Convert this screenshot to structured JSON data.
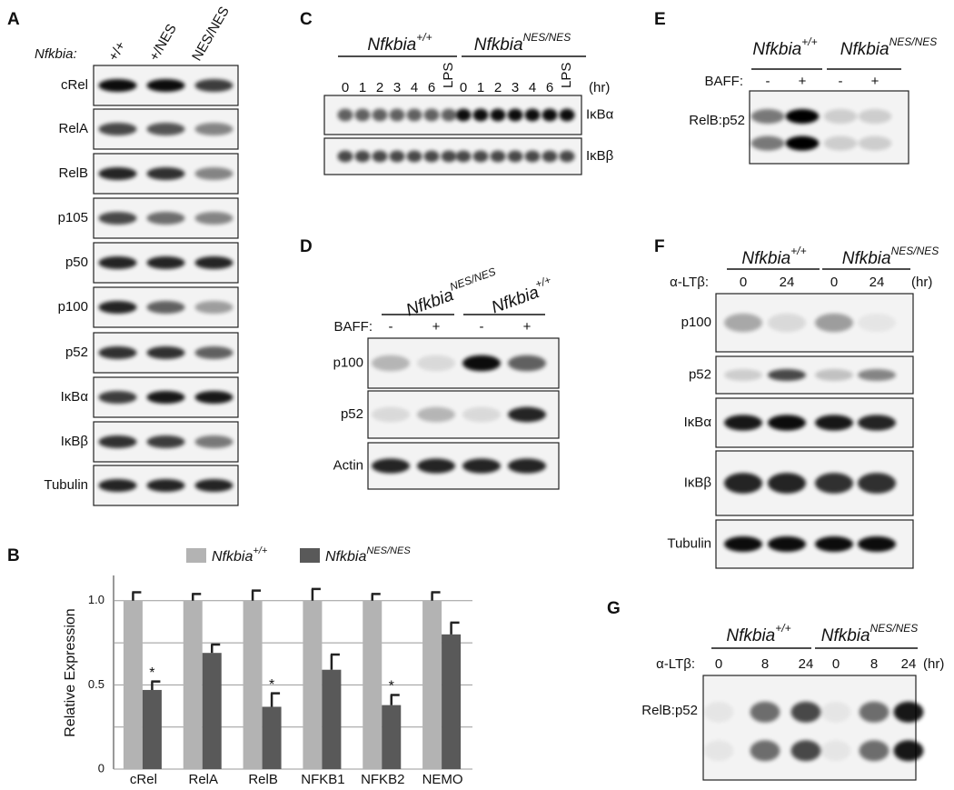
{
  "panels": {
    "A": {
      "label": "A",
      "genotype_label": "Nfkbia:",
      "lanes": [
        "+/+",
        "+/NES",
        "NES/NES"
      ],
      "blots": [
        "cRel",
        "RelA",
        "RelB",
        "p105",
        "p50",
        "p100",
        "p52",
        "IκBα",
        "IκBβ",
        "Tubulin"
      ]
    },
    "B": {
      "label": "B"
    },
    "C": {
      "label": "C",
      "groups": [
        {
          "name": "Nfkbia",
          "superscript": "+/+"
        },
        {
          "name": "Nfkbia",
          "superscript": "NES/NES"
        }
      ],
      "lanes": [
        "0",
        "1",
        "2",
        "3",
        "4",
        "6",
        "LPS",
        "0",
        "1",
        "2",
        "3",
        "4",
        "6",
        "LPS"
      ],
      "unit": "(hr)",
      "blots": [
        "IκBα",
        "IκBβ"
      ]
    },
    "D": {
      "label": "D",
      "groups": [
        {
          "name": "Nfkbia",
          "superscript": "NES/NES"
        },
        {
          "name": "Nfkbia",
          "superscript": "+/+"
        }
      ],
      "treatment": "BAFF:",
      "lanes": [
        "-",
        "+",
        "-",
        "+"
      ],
      "blots": [
        "p100",
        "p52",
        "Actin"
      ]
    },
    "E": {
      "label": "E",
      "groups": [
        {
          "name": "Nfkbia",
          "superscript": "+/+"
        },
        {
          "name": "Nfkbia",
          "superscript": "NES/NES"
        }
      ],
      "treatment": "BAFF:",
      "lanes": [
        "-",
        "+",
        "-",
        "+"
      ],
      "blots": [
        "RelB:p52"
      ]
    },
    "F": {
      "label": "F",
      "groups": [
        {
          "name": "Nfkbia",
          "superscript": "+/+"
        },
        {
          "name": "Nfkbia",
          "superscript": "NES/NES"
        }
      ],
      "treatment": "α-LTβ:",
      "lanes": [
        "0",
        "24",
        "0",
        "24"
      ],
      "unit": "(hr)",
      "blots": [
        "p100",
        "p52",
        "IκBα",
        "IκBβ",
        "Tubulin"
      ]
    },
    "G": {
      "label": "G",
      "groups": [
        {
          "name": "Nfkbia",
          "superscript": "+/+"
        },
        {
          "name": "Nfkbia",
          "superscript": "NES/NES"
        }
      ],
      "treatment": "α-LTβ:",
      "lanes": [
        "0",
        "8",
        "24",
        "0",
        "8",
        "24"
      ],
      "unit": "(hr)",
      "blots": [
        "RelB:p52"
      ]
    }
  },
  "chart_data": {
    "type": "bar",
    "y_label": "Relative Expression",
    "categories": [
      "cRel",
      "RelA",
      "RelB",
      "NFKB1",
      "NFKB2",
      "NEMO"
    ],
    "series": [
      {
        "name": "Nfkbia",
        "superscript": "+/+",
        "color": "#b3b3b3",
        "values": [
          1,
          1,
          1,
          1,
          1,
          1
        ],
        "errors": [
          0.05,
          0.04,
          0.06,
          0.07,
          0.04,
          0.05
        ]
      },
      {
        "name": "Nfkbia",
        "superscript": "NES/NES",
        "color": "#595959",
        "values": [
          0.47,
          0.69,
          0.37,
          0.59,
          0.38,
          0.8
        ],
        "errors": [
          0.05,
          0.05,
          0.08,
          0.09,
          0.06,
          0.07
        ]
      }
    ],
    "significance": [
      "*",
      null,
      "*",
      null,
      "*",
      null
    ],
    "ylim": [
      0,
      1.15
    ],
    "yticks": [
      0,
      0.5,
      {
        "value": 1,
        "label": "1.0"
      }
    ],
    "minor_gridlines": [
      0.25,
      0.75
    ],
    "grid": true
  }
}
